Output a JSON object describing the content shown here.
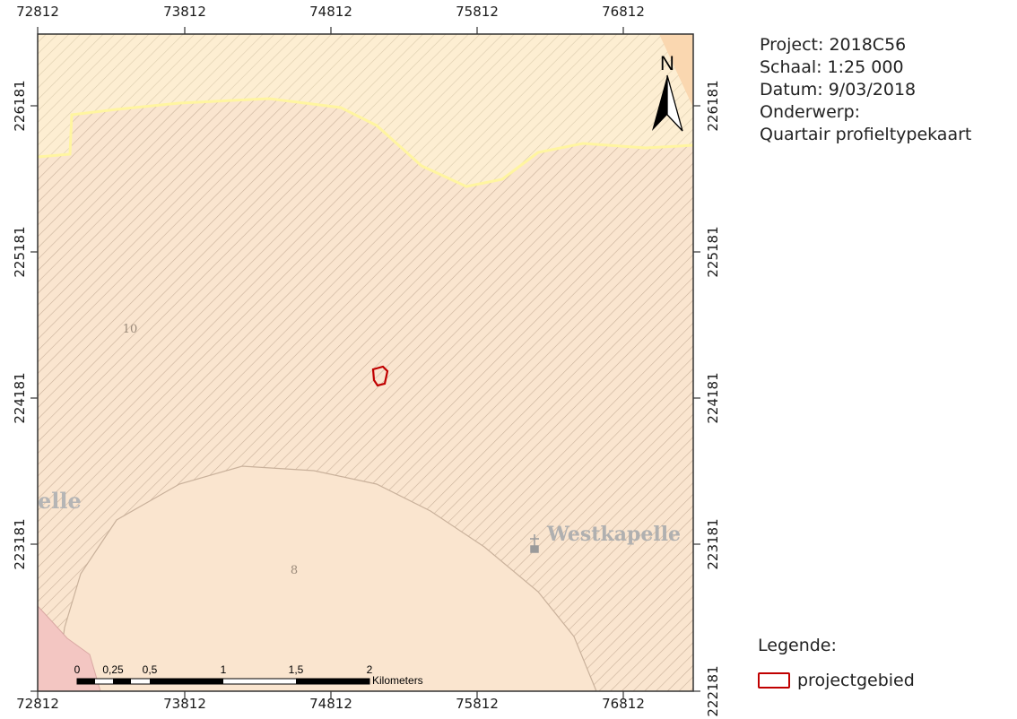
{
  "map": {
    "x_ticks": [
      "72812",
      "73812",
      "74812",
      "75812",
      "76812"
    ],
    "y_ticks": [
      "226181",
      "225181",
      "224181",
      "223181",
      "222181"
    ],
    "labels": {
      "area_10": "10",
      "area_8": "8",
      "town_west": "elle",
      "town_main": "Westkapelle"
    },
    "colors": {
      "base": "#fae5cf",
      "hatch": "#c9b19b",
      "yellow_boundary": "#fff5a0",
      "pink_area": "#f3c6c2",
      "project_outline": "#c00000"
    }
  },
  "scalebar": {
    "labels": [
      "0",
      "0,25",
      "0,5",
      "1",
      "1,5",
      "2"
    ],
    "unit": "Kilometers"
  },
  "north_arrow": {
    "label": "N"
  },
  "info": {
    "project": "Project: 2018C56",
    "scale": "Schaal: 1:25 000",
    "date": "Datum: 9/03/2018",
    "subject_label": "Onderwerp:",
    "subject": "Quartair profieltypekaart"
  },
  "legend": {
    "title": "Legende:",
    "items": [
      {
        "label": "projectgebied",
        "icon": "outline-swatch",
        "color": "#c00000"
      }
    ]
  }
}
